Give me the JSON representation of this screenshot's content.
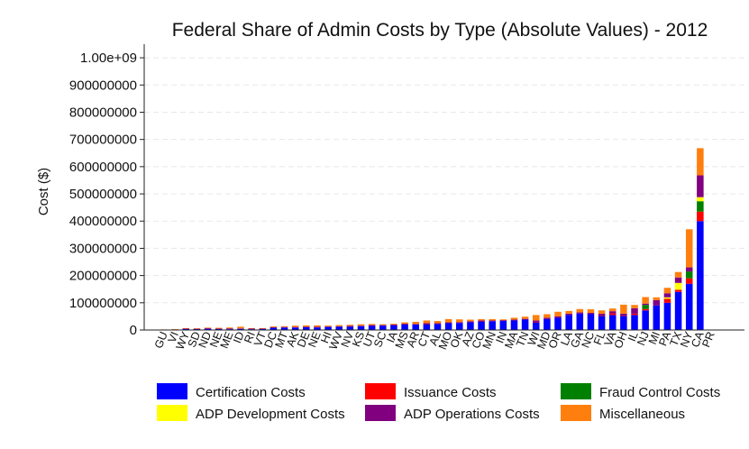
{
  "chart_data": {
    "type": "bar",
    "stacked": true,
    "title": "Federal Share of Admin Costs by Type (Absolute Values) - 2012",
    "xlabel": "",
    "ylabel": "Cost ($)",
    "ylim": [
      0,
      1050000000
    ],
    "yticks": [
      0,
      100000000,
      200000000,
      300000000,
      400000000,
      500000000,
      600000000,
      700000000,
      800000000,
      900000000,
      1000000000
    ],
    "ytick_labels": [
      "0",
      "100000000",
      "200000000",
      "300000000",
      "400000000",
      "500000000",
      "600000000",
      "700000000",
      "800000000",
      "900000000",
      "1.00e+09"
    ],
    "grid": "horizontal dashed",
    "legend_position": "bottom",
    "categories": [
      "GU",
      "VI",
      "WY",
      "SD",
      "ND",
      "NE",
      "ME",
      "ID",
      "RI",
      "VT",
      "DC",
      "MT",
      "AK",
      "DE",
      "NE",
      "HI",
      "WV",
      "NV",
      "KS",
      "UT",
      "SC",
      "IA",
      "MS",
      "AR",
      "CT",
      "AL",
      "MO",
      "OK",
      "AZ",
      "CO",
      "MN",
      "IN",
      "MA",
      "TN",
      "WI",
      "MD",
      "OR",
      "LA",
      "GA",
      "NC",
      "FL",
      "VA",
      "OH",
      "IL",
      "NJ",
      "MI",
      "PA",
      "TX",
      "NY",
      "CA",
      "PR"
    ],
    "series": [
      {
        "name": "Certification Costs",
        "color": "#0000FF",
        "values": [
          1000000,
          2000000,
          4000000,
          3500000,
          4000000,
          4000000,
          3000000,
          4000000,
          3000000,
          4000000,
          8000000,
          9000000,
          9000000,
          10000000,
          9000000,
          11000000,
          12000000,
          12000000,
          14000000,
          15000000,
          16000000,
          17000000,
          20000000,
          20000000,
          20000000,
          22000000,
          25000000,
          26000000,
          28000000,
          30000000,
          32000000,
          33000000,
          35000000,
          38000000,
          28000000,
          40000000,
          45000000,
          55000000,
          60000000,
          58000000,
          50000000,
          55000000,
          50000000,
          55000000,
          72000000,
          90000000,
          100000000,
          140000000,
          170000000,
          400000000,
          0
        ]
      },
      {
        "name": "Issuance Costs",
        "color": "#FF0000",
        "values": [
          0,
          0,
          0,
          0,
          0,
          0,
          0,
          0,
          0,
          0,
          0,
          0,
          0,
          0,
          0,
          0,
          0,
          0,
          0,
          0,
          0,
          0,
          0,
          0,
          0,
          0,
          0,
          0,
          0,
          0,
          0,
          0,
          0,
          0,
          2000000,
          0,
          0,
          0,
          0,
          0,
          0,
          6000000,
          0,
          5000000,
          5000000,
          0,
          15000000,
          8000000,
          20000000,
          35000000,
          0
        ]
      },
      {
        "name": "Fraud Control Costs",
        "color": "#008000",
        "values": [
          0,
          0,
          0,
          0,
          0,
          0,
          0,
          0,
          0,
          0,
          0,
          0,
          0,
          0,
          0,
          0,
          0,
          0,
          0,
          0,
          0,
          0,
          0,
          0,
          0,
          0,
          0,
          0,
          0,
          0,
          0,
          0,
          0,
          0,
          0,
          0,
          0,
          0,
          0,
          0,
          0,
          0,
          0,
          0,
          15000000,
          0,
          0,
          0,
          25000000,
          38000000,
          0
        ]
      },
      {
        "name": "ADP Development Costs",
        "color": "#FFFF00",
        "values": [
          0,
          0,
          0,
          0,
          0,
          0,
          0,
          0,
          0,
          0,
          0,
          0,
          0,
          0,
          0,
          0,
          0,
          0,
          0,
          0,
          0,
          0,
          0,
          0,
          0,
          0,
          0,
          0,
          0,
          0,
          0,
          0,
          0,
          0,
          0,
          0,
          0,
          0,
          0,
          0,
          0,
          0,
          0,
          0,
          0,
          0,
          5000000,
          25000000,
          0,
          15000000,
          0
        ]
      },
      {
        "name": "ADP Operations Costs",
        "color": "#800080",
        "values": [
          0,
          0,
          1000000,
          1000000,
          3000000,
          1000000,
          3000000,
          2000000,
          2000000,
          1000000,
          2000000,
          2000000,
          2000000,
          2000000,
          3000000,
          2000000,
          2000000,
          3000000,
          2000000,
          3000000,
          2000000,
          3000000,
          3000000,
          2000000,
          5000000,
          3000000,
          3000000,
          3000000,
          4000000,
          5000000,
          3000000,
          3000000,
          3000000,
          3000000,
          5000000,
          5000000,
          5000000,
          5000000,
          5000000,
          5000000,
          10000000,
          8000000,
          10000000,
          20000000,
          5000000,
          20000000,
          15000000,
          20000000,
          15000000,
          80000000,
          0
        ]
      },
      {
        "name": "Miscellaneous",
        "color": "#FF7F0E",
        "values": [
          1000000,
          1000000,
          2000000,
          2000000,
          2000000,
          3000000,
          3000000,
          6000000,
          2000000,
          2000000,
          3000000,
          3000000,
          5000000,
          5000000,
          5000000,
          3000000,
          4000000,
          4000000,
          5000000,
          4000000,
          3000000,
          3000000,
          5000000,
          8000000,
          10000000,
          8000000,
          12000000,
          10000000,
          6000000,
          5000000,
          5000000,
          3000000,
          7000000,
          8000000,
          20000000,
          13000000,
          17000000,
          10000000,
          12000000,
          13000000,
          12000000,
          10000000,
          33000000,
          12000000,
          24000000,
          10000000,
          20000000,
          20000000,
          140000000,
          100000000,
          0
        ]
      }
    ]
  }
}
